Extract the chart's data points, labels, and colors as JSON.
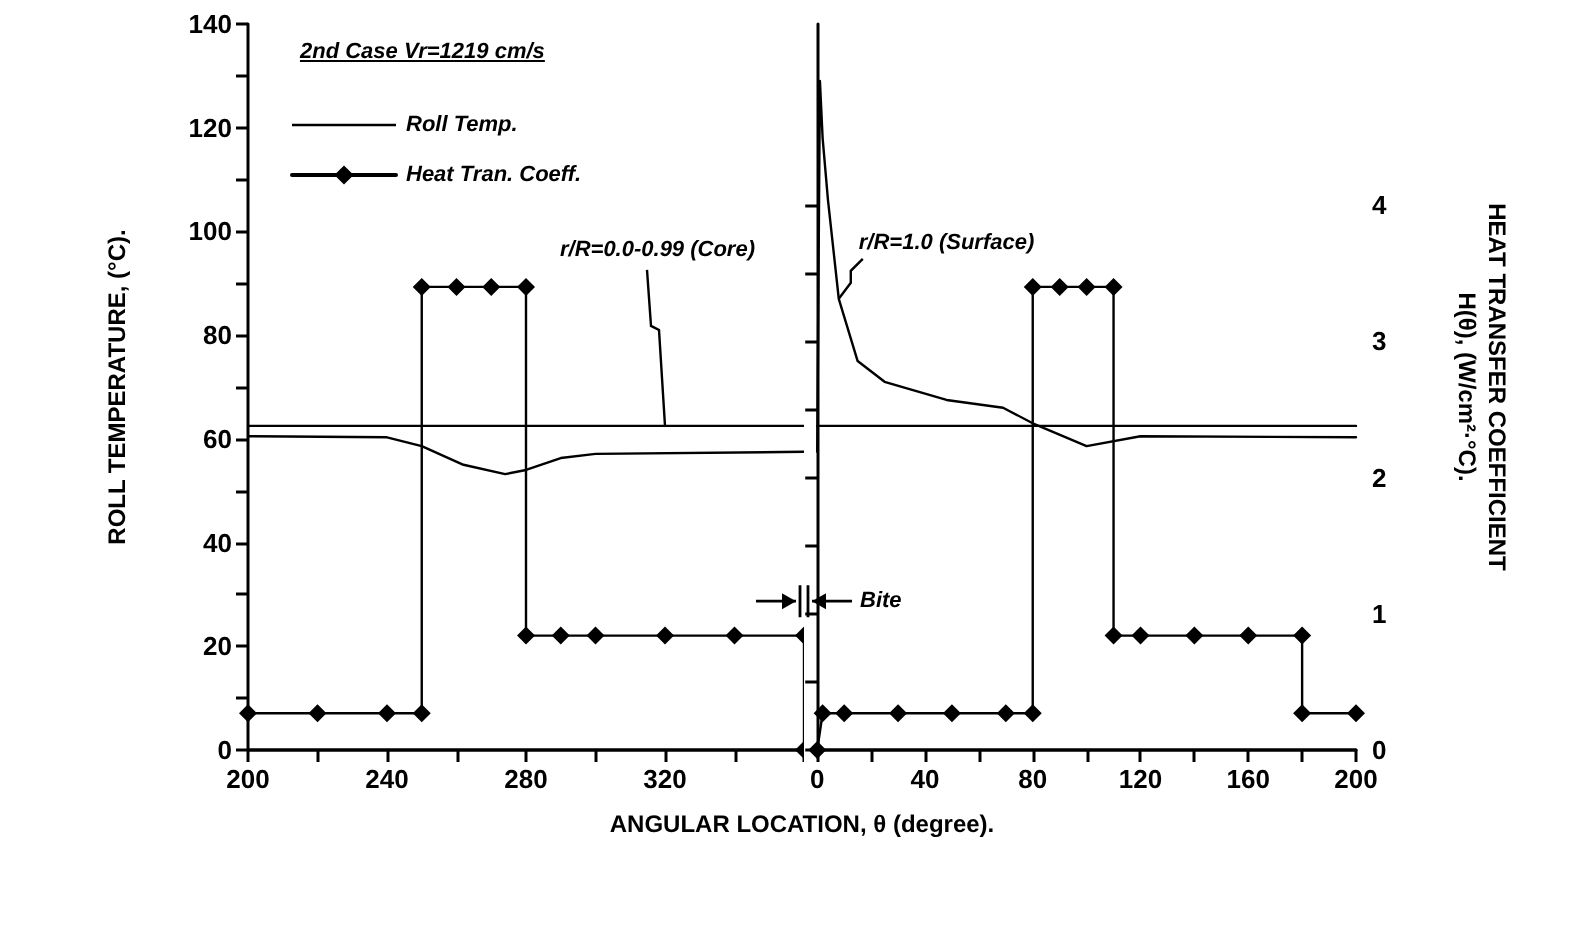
{
  "chart_data": [
    {
      "type": "line",
      "title": "2nd Case Vr=1219 cm/s",
      "xlabel": "ANGULAR LOCATION, θ (degree).",
      "ylabel": "ROLL TEMPERATURE, (°C).",
      "xlim": [
        200,
        360
      ],
      "xticks": [
        200,
        {
          "value": 220,
          "label": null
        },
        240,
        {
          "value": 260,
          "label": null
        },
        280,
        {
          "value": 300,
          "label": null
        },
        320,
        {
          "value": 340,
          "label": null
        },
        {
          "value": 360,
          "label": null
        }
      ],
      "ylim": [
        0,
        140
      ],
      "yticks": [
        0,
        {
          "value": 10,
          "label": null
        },
        20,
        {
          "value": 30,
          "label": null
        },
        40,
        {
          "value": 50,
          "label": null
        },
        60,
        {
          "value": 70,
          "label": null
        },
        80,
        {
          "value": 90,
          "label": null
        },
        100,
        {
          "value": 110,
          "label": null
        },
        120,
        {
          "value": 130,
          "label": null
        },
        140
      ],
      "y2lim": [
        0,
        5.33
      ],
      "tick_labels": "xy",
      "grid": false,
      "legend": "top left",
      "series": [
        {
          "name": "Roll Temp.",
          "color": "#000000",
          "marker": "none",
          "x": [
            200,
            240,
            250,
            262,
            274,
            280,
            290,
            300,
            360
          ],
          "values": [
            60.5,
            60.3,
            58.6,
            55,
            53.2,
            54,
            56.3,
            57.1,
            57.5
          ]
        },
        {
          "color": "#000000",
          "marker": "none",
          "x": [
            200,
            360
          ],
          "values": [
            62.5,
            62.5
          ]
        },
        {
          "name": "Heat Tran. Coeff.",
          "color": "#000000",
          "marker": "diamond",
          "axis": "y2",
          "x": [
            200,
            220,
            240,
            250,
            250,
            260,
            270,
            280,
            280,
            290,
            300,
            320,
            340,
            360,
            360
          ],
          "values": [
            0.27,
            0.27,
            0.27,
            0.27,
            3.4,
            3.4,
            3.4,
            3.4,
            0.84,
            0.84,
            0.84,
            0.84,
            0.84,
            0.84,
            0
          ]
        }
      ],
      "annotations": [
        {
          "text": "r/R=0.0-0.99 (Core)",
          "x": 320,
          "y": 62.5
        }
      ]
    },
    {
      "type": "line",
      "y2label": "HEAT TRANSFER COEFFICIENT\nH(θ), (W/cm²·°C).",
      "xlim": [
        0,
        200
      ],
      "xticks": [
        0,
        {
          "value": 20,
          "label": null
        },
        40,
        {
          "value": 60,
          "label": null
        },
        80,
        {
          "value": 100,
          "label": null
        },
        120,
        {
          "value": 140,
          "label": null
        },
        160,
        {
          "value": 180,
          "label": null
        },
        200
      ],
      "ylim": [
        0,
        140
      ],
      "y2lim": [
        0,
        5.33
      ],
      "y2ticks": [
        0,
        {
          "value": 0.5,
          "label": null
        },
        1,
        {
          "value": 1.5,
          "label": null
        },
        2,
        {
          "value": 2.5,
          "label": null
        },
        3,
        {
          "value": 3.5,
          "label": null
        },
        4
      ],
      "tick_labels": "xy2",
      "grid": false,
      "series": [
        {
          "color": "#000000",
          "marker": "none",
          "x": [
            0,
            1,
            2,
            4,
            8,
            15,
            25,
            48,
            69,
            80,
            100,
            120,
            200
          ],
          "values": [
            57.5,
            129,
            118,
            106,
            87,
            75,
            71,
            67.5,
            66,
            63,
            58.6,
            60.5,
            60.3
          ]
        },
        {
          "color": "#000000",
          "marker": "none",
          "x": [
            0,
            200
          ],
          "values": [
            62.5,
            62.5
          ]
        },
        {
          "color": "#000000",
          "marker": "diamond",
          "axis": "y2",
          "x": [
            0,
            2,
            10,
            30,
            50,
            70,
            80,
            80,
            90,
            100,
            110,
            110,
            120,
            140,
            160,
            180,
            180,
            200
          ],
          "values": [
            0,
            0.27,
            0.27,
            0.27,
            0.27,
            0.27,
            0.27,
            3.4,
            3.4,
            3.4,
            3.4,
            0.84,
            0.84,
            0.84,
            0.84,
            0.84,
            0.27,
            0.27
          ]
        }
      ],
      "annotations": [
        {
          "text": "r/R=1.0 (Surface)",
          "x": 8,
          "y": 87
        },
        "Bite"
      ]
    }
  ]
}
